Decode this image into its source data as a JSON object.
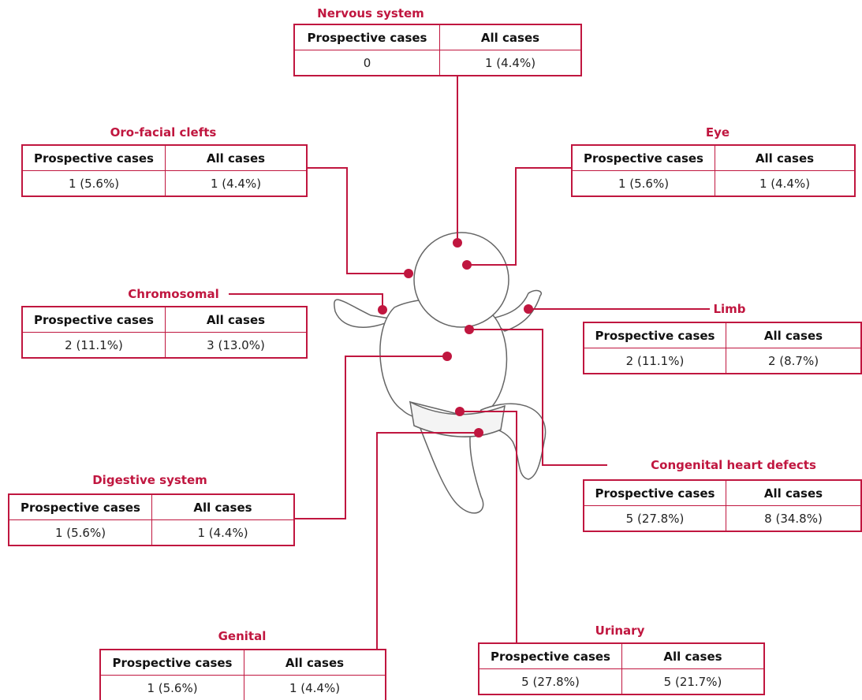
{
  "panels": [
    {
      "title": "Nervous system",
      "headers": [
        "Prospective cases",
        "All cases"
      ],
      "cells": [
        "0",
        "1 (4.4%)"
      ]
    },
    {
      "title": "Oro-facial clefts",
      "headers": [
        "Prospective cases",
        "All cases"
      ],
      "cells": [
        "1 (5.6%)",
        "1 (4.4%)"
      ]
    },
    {
      "title": "Eye",
      "headers": [
        "Prospective cases",
        "All cases"
      ],
      "cells": [
        "1 (5.6%)",
        "1 (4.4%)"
      ]
    },
    {
      "title": "Chromosomal",
      "headers": [
        "Prospective cases",
        "All cases"
      ],
      "cells": [
        "2 (11.1%)",
        "3 (13.0%)"
      ]
    },
    {
      "title": "Limb",
      "headers": [
        "Prospective cases",
        "All cases"
      ],
      "cells": [
        "2 (11.1%)",
        "2 (8.7%)"
      ]
    },
    {
      "title": "Digestive system",
      "headers": [
        "Prospective cases",
        "All cases"
      ],
      "cells": [
        "1 (5.6%)",
        "1 (4.4%)"
      ]
    },
    {
      "title": "Congenital heart defects",
      "headers": [
        "Prospective cases",
        "All cases"
      ],
      "cells": [
        "5 (27.8%)",
        "8 (34.8%)"
      ]
    },
    {
      "title": "Genital",
      "headers": [
        "Prospective cases",
        "All cases"
      ],
      "cells": [
        "1 (5.6%)",
        "1 (4.4%)"
      ]
    },
    {
      "title": "Urinary",
      "headers": [
        "Prospective cases",
        "All cases"
      ],
      "cells": [
        "5 (27.8%)",
        "5 (21.7%)"
      ]
    }
  ]
}
